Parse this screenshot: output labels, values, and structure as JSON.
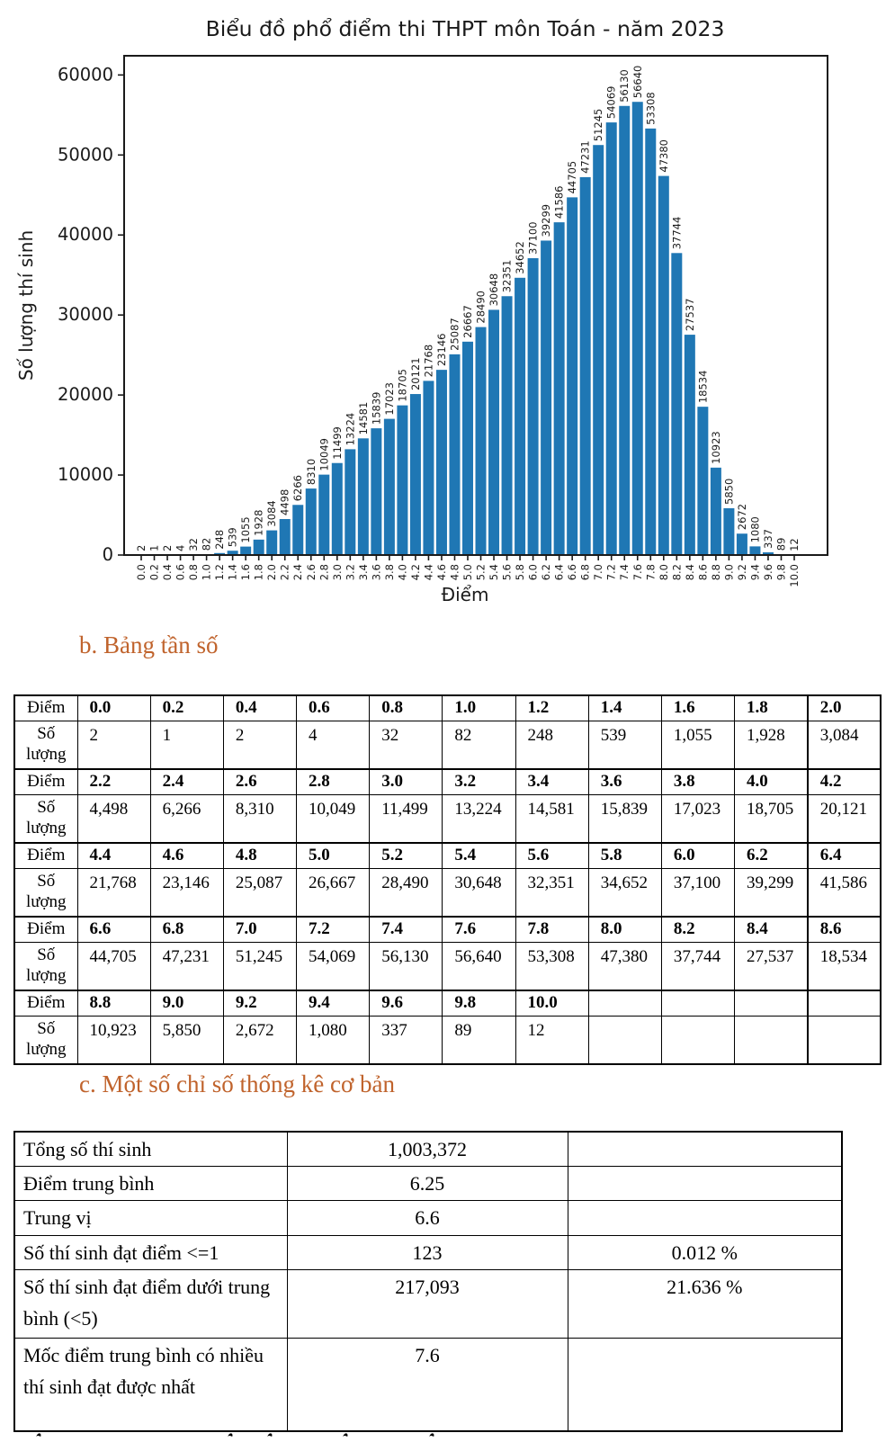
{
  "chart_data": {
    "type": "bar",
    "title": "Biểu đồ phổ điểm thi THPT môn Toán - năm 2023",
    "xlabel": "Điểm",
    "ylabel": "Số lượng thí sinh",
    "bar_color": "#1f77b4",
    "grid": false,
    "legend": "none",
    "ylim": [
      0,
      62400
    ],
    "yticks": [
      0,
      10000,
      20000,
      30000,
      40000,
      50000,
      60000
    ],
    "categories": [
      "0.0",
      "0.2",
      "0.4",
      "0.6",
      "0.8",
      "1.0",
      "1.2",
      "1.4",
      "1.6",
      "1.8",
      "2.0",
      "2.2",
      "2.4",
      "2.6",
      "2.8",
      "3.0",
      "3.2",
      "3.4",
      "3.6",
      "3.8",
      "4.0",
      "4.2",
      "4.4",
      "4.6",
      "4.8",
      "5.0",
      "5.2",
      "5.4",
      "5.6",
      "5.8",
      "6.0",
      "6.2",
      "6.4",
      "6.6",
      "6.8",
      "7.0",
      "7.2",
      "7.4",
      "7.6",
      "7.8",
      "8.0",
      "8.2",
      "8.4",
      "8.6",
      "8.8",
      "9.0",
      "9.2",
      "9.4",
      "9.6",
      "9.8",
      "10.0"
    ],
    "values": [
      2,
      1,
      2,
      4,
      32,
      82,
      248,
      539,
      1055,
      1928,
      3084,
      4498,
      6266,
      8310,
      10049,
      11499,
      13224,
      14581,
      15839,
      17023,
      18705,
      20121,
      21768,
      23146,
      25087,
      26667,
      28490,
      30648,
      32351,
      34652,
      37100,
      39299,
      41586,
      44705,
      47231,
      51245,
      54069,
      56130,
      56640,
      53308,
      47380,
      37744,
      27537,
      18534,
      10923,
      5850,
      2672,
      1080,
      337,
      89,
      12
    ]
  },
  "section_b": {
    "heading": "b. Bảng tần số",
    "heading_color": "#c0632c",
    "score_label": "Điểm",
    "count_label": "Số lượng",
    "rows": [
      {
        "scores": [
          "0.0",
          "0.2",
          "0.4",
          "0.6",
          "0.8",
          "1.0",
          "1.2",
          "1.4",
          "1.6",
          "1.8",
          "2.0"
        ],
        "counts": [
          "2",
          "1",
          "2",
          "4",
          "32",
          "82",
          "248",
          "539",
          "1,055",
          "1,928",
          "3,084"
        ]
      },
      {
        "scores": [
          "2.2",
          "2.4",
          "2.6",
          "2.8",
          "3.0",
          "3.2",
          "3.4",
          "3.6",
          "3.8",
          "4.0",
          "4.2"
        ],
        "counts": [
          "4,498",
          "6,266",
          "8,310",
          "10,049",
          "11,499",
          "13,224",
          "14,581",
          "15,839",
          "17,023",
          "18,705",
          "20,121"
        ]
      },
      {
        "scores": [
          "4.4",
          "4.6",
          "4.8",
          "5.0",
          "5.2",
          "5.4",
          "5.6",
          "5.8",
          "6.0",
          "6.2",
          "6.4"
        ],
        "counts": [
          "21,768",
          "23,146",
          "25,087",
          "26,667",
          "28,490",
          "30,648",
          "32,351",
          "34,652",
          "37,100",
          "39,299",
          "41,586"
        ]
      },
      {
        "scores": [
          "6.6",
          "6.8",
          "7.0",
          "7.2",
          "7.4",
          "7.6",
          "7.8",
          "8.0",
          "8.2",
          "8.4",
          "8.6"
        ],
        "counts": [
          "44,705",
          "47,231",
          "51,245",
          "54,069",
          "56,130",
          "56,640",
          "53,308",
          "47,380",
          "37,744",
          "27,537",
          "18,534"
        ]
      },
      {
        "scores": [
          "8.8",
          "9.0",
          "9.2",
          "9.4",
          "9.6",
          "9.8",
          "10.0",
          "",
          "",
          "",
          ""
        ],
        "counts": [
          "10,923",
          "5,850",
          "2,672",
          "1,080",
          "337",
          "89",
          "12",
          "",
          "",
          "",
          ""
        ]
      }
    ]
  },
  "section_c": {
    "heading": "c. Một số chỉ số thống kê cơ bản",
    "heading_color": "#c0632c",
    "stats": [
      {
        "label": "Tổng số thí sinh",
        "value": "1,003,372",
        "percent": ""
      },
      {
        "label": "Điểm trung bình",
        "value": "6.25",
        "percent": ""
      },
      {
        "label": "Trung vị",
        "value": "6.6",
        "percent": ""
      },
      {
        "label": "Số thí sinh đạt điểm <=1",
        "value": "123",
        "percent": "0.012 %"
      },
      {
        "label": "Số thí sinh đạt điểm dưới trung bình (<5)",
        "value": "217,093",
        "percent": "21.636 %"
      },
      {
        "label": "Mốc điểm trung bình có nhiều thí sinh đạt được nhất",
        "value": "7.6",
        "percent": ""
      }
    ]
  }
}
